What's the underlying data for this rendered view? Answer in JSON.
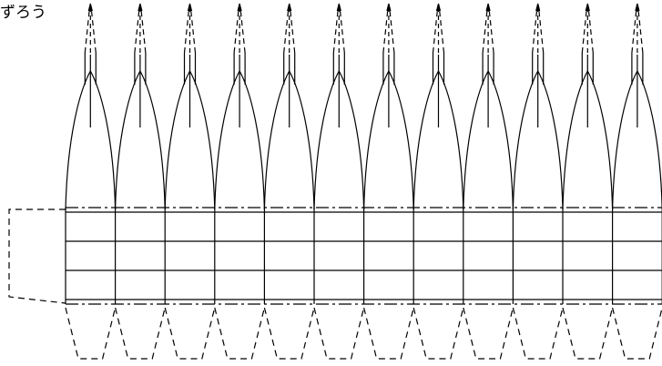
{
  "diagram": {
    "label_text": "ずろう",
    "stroke_color": "#000000",
    "background_color": "#ffffff",
    "bay_count": 12
  }
}
